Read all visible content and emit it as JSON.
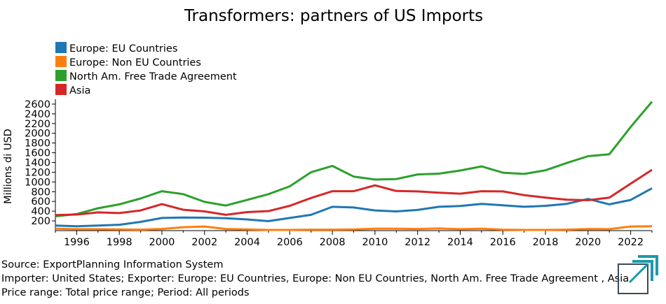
{
  "chart_data": {
    "type": "line",
    "title": "Transformers: partners of US Imports",
    "ylabel": "Millions di USD",
    "xlabel": "",
    "xlim": [
      1995,
      2023
    ],
    "ylim": [
      0,
      2700
    ],
    "x_ticks": [
      1996,
      1998,
      2000,
      2002,
      2004,
      2006,
      2008,
      2010,
      2012,
      2014,
      2016,
      2018,
      2020,
      2022
    ],
    "y_ticks": [
      200,
      400,
      600,
      800,
      1000,
      1200,
      1400,
      1600,
      1800,
      2000,
      2200,
      2400,
      2600
    ],
    "legend_position": "top-left",
    "x": [
      1995,
      1996,
      1997,
      1998,
      1999,
      2000,
      2001,
      2002,
      2003,
      2004,
      2005,
      2006,
      2007,
      2008,
      2009,
      2010,
      2011,
      2012,
      2013,
      2014,
      2015,
      2016,
      2017,
      2018,
      2019,
      2020,
      2021,
      2022,
      2023
    ],
    "series": [
      {
        "name": "Europe: EU Countries",
        "color": "#1f77b4",
        "values": [
          105,
          90,
          105,
          120,
          180,
          260,
          270,
          265,
          255,
          230,
          195,
          260,
          325,
          490,
          475,
          415,
          395,
          425,
          490,
          505,
          550,
          520,
          490,
          510,
          550,
          650,
          540,
          630,
          870
        ]
      },
      {
        "name": "Europe: Non EU Countries",
        "color": "#ff7f0e",
        "values": [
          40,
          30,
          30,
          25,
          20,
          35,
          70,
          85,
          35,
          25,
          15,
          15,
          20,
          20,
          25,
          40,
          40,
          35,
          45,
          30,
          40,
          20,
          15,
          15,
          20,
          35,
          30,
          85,
          90
        ]
      },
      {
        "name": "North Am. Free Trade Agreement",
        "color": "#2ca02c",
        "values": [
          295,
          340,
          460,
          540,
          660,
          810,
          750,
          590,
          515,
          630,
          750,
          910,
          1200,
          1330,
          1110,
          1050,
          1060,
          1155,
          1170,
          1235,
          1320,
          1190,
          1165,
          1240,
          1390,
          1530,
          1570,
          2130,
          2650
        ]
      },
      {
        "name": "Asia",
        "color": "#d62728",
        "values": [
          320,
          330,
          375,
          360,
          415,
          545,
          430,
          395,
          325,
          380,
          400,
          510,
          670,
          810,
          810,
          930,
          815,
          805,
          780,
          760,
          810,
          805,
          730,
          680,
          635,
          625,
          680,
          965,
          1250
        ]
      }
    ]
  },
  "footer": {
    "source": "Source: ExportPlanning Information System",
    "filters": "Importer: United States; Exporter: Europe: EU Countries, Europe: Non EU Countries, North Am. Free Trade Agreement , Asia",
    "range": "Price range: Total price range; Period: All periods"
  },
  "logo": {
    "icon": "exportplanning-logo-icon",
    "colors": [
      "#1b9aaa",
      "#3d4a55"
    ]
  }
}
